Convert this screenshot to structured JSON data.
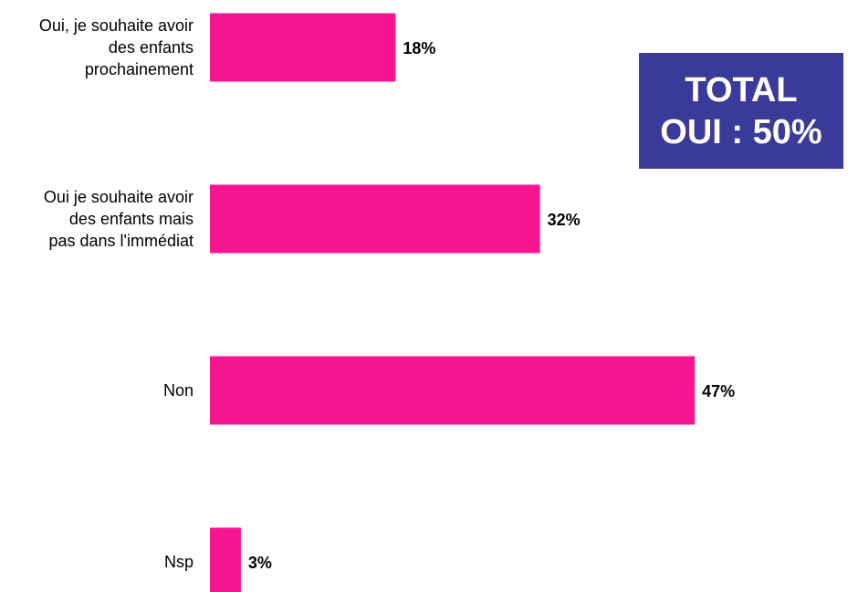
{
  "chart_data": {
    "type": "hbar",
    "categories": [
      "Oui, je souhaite avoir des enfants prochainement",
      "Oui je souhaite avoir des enfants mais pas dans l'immédiat",
      "Non",
      "Nsp"
    ],
    "values": [
      18,
      32,
      47,
      3
    ],
    "value_labels": [
      "18%",
      "32%",
      "47%",
      "3%"
    ],
    "color": "#f7168f",
    "annotation": [
      "TOTAL",
      "OUI : 50%"
    ]
  }
}
